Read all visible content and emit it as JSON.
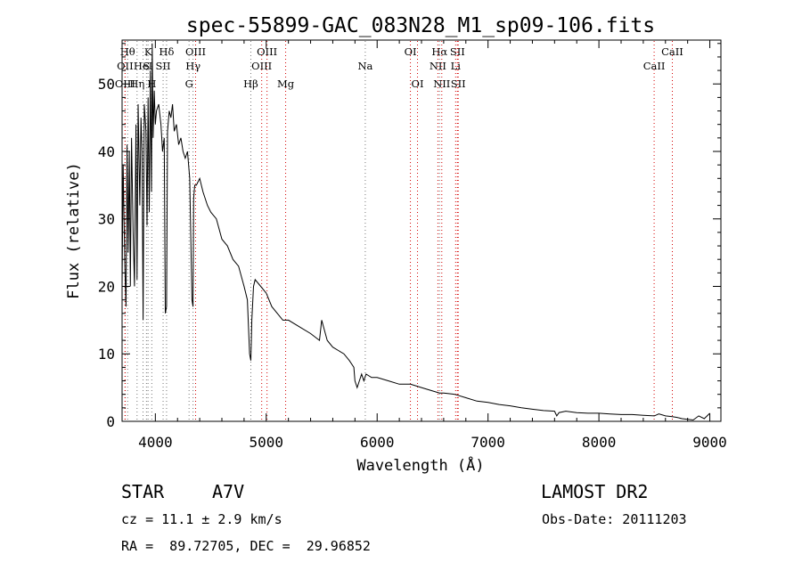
{
  "chart_data": {
    "type": "line",
    "title": "spec-55899-GAC_083N28_M1_sp09-106.fits",
    "xlabel": "Wavelength (Å)",
    "ylabel": "Flux (relative)",
    "xlim": [
      3700,
      9100
    ],
    "ylim": [
      0,
      56.5
    ],
    "x_ticks": [
      4000,
      5000,
      6000,
      7000,
      8000,
      9000
    ],
    "y_ticks": [
      0,
      10,
      20,
      30,
      40,
      50
    ],
    "series": [
      {
        "name": "spectrum",
        "x": [
          3700,
          3710,
          3725,
          3735,
          3745,
          3755,
          3765,
          3775,
          3785,
          3800,
          3812,
          3825,
          3835,
          3845,
          3860,
          3870,
          3880,
          3890,
          3900,
          3915,
          3925,
          3935,
          3945,
          3955,
          3965,
          3972,
          3980,
          3990,
          4000,
          4010,
          4030,
          4050,
          4065,
          4080,
          4090,
          4101,
          4110,
          4125,
          4140,
          4155,
          4170,
          4190,
          4210,
          4230,
          4250,
          4270,
          4290,
          4310,
          4330,
          4340,
          4345,
          4355,
          4370,
          4400,
          4430,
          4470,
          4500,
          4550,
          4600,
          4650,
          4700,
          4750,
          4800,
          4830,
          4850,
          4861,
          4870,
          4885,
          4900,
          4950,
          5000,
          5050,
          5100,
          5150,
          5200,
          5300,
          5400,
          5480,
          5500,
          5550,
          5600,
          5650,
          5700,
          5750,
          5790,
          5800,
          5820,
          5840,
          5860,
          5880,
          5900,
          5950,
          6000,
          6100,
          6200,
          6300,
          6400,
          6500,
          6563,
          6600,
          6700,
          6800,
          6900,
          7000,
          7100,
          7200,
          7300,
          7400,
          7500,
          7600,
          7620,
          7640,
          7700,
          7800,
          7900,
          8000,
          8100,
          8200,
          8300,
          8400,
          8500,
          8540,
          8600,
          8662,
          8700,
          8750,
          8800,
          8850,
          8900,
          8950,
          9000
        ],
        "y": [
          20,
          38,
          23,
          17,
          41,
          25,
          40,
          20,
          42,
          28,
          20,
          44,
          21,
          47,
          32,
          45,
          40,
          15,
          47,
          43,
          29,
          48,
          31,
          52,
          34,
          56,
          42,
          49,
          44,
          46,
          47,
          44,
          40,
          42,
          16,
          17,
          43,
          46,
          45,
          47,
          43,
          44,
          41,
          42,
          40,
          39,
          40,
          36,
          18,
          17,
          33,
          35,
          35,
          36,
          34,
          32,
          31,
          30,
          27,
          26,
          24,
          23,
          20,
          18,
          10,
          9,
          15,
          20,
          21,
          20,
          19,
          17,
          16,
          15,
          15,
          14,
          13,
          12,
          15,
          12,
          11,
          10.5,
          10,
          9,
          8,
          6,
          5,
          6,
          7,
          6,
          7,
          6.5,
          6.5,
          6,
          5.5,
          5.5,
          5,
          4.5,
          4.2,
          4.2,
          4,
          3.5,
          3,
          2.8,
          2.5,
          2.3,
          2,
          1.8,
          1.6,
          1.5,
          0.8,
          1.3,
          1.5,
          1.3,
          1.2,
          1.2,
          1.1,
          1,
          1,
          0.9,
          0.8,
          1.1,
          0.8,
          0.7,
          0.6,
          0.4,
          0.3,
          0.2,
          0.8,
          0.4,
          1.2
        ]
      }
    ],
    "lines": [
      {
        "label": "OII",
        "x": 3727,
        "color": "#d40000",
        "row": 2
      },
      {
        "label": "OIII",
        "x": 3727,
        "color": "#d40000",
        "row": 3
      },
      {
        "label": "Hθ",
        "x": 3750,
        "color": "#777777",
        "row": 1
      },
      {
        "label": "Hη",
        "x": 3835,
        "color": "#777777",
        "row": 3
      },
      {
        "label": "HeI",
        "x": 3889,
        "color": "#777777",
        "row": 2
      },
      {
        "label": "K",
        "x": 3934,
        "color": "#777777",
        "row": 1
      },
      {
        "label": "S",
        "x": 3920,
        "color": "#777777",
        "row": 2
      },
      {
        "label": "H",
        "x": 3968,
        "color": "#777777",
        "row": 3
      },
      {
        "label": "Hδ",
        "x": 4101,
        "color": "#777777",
        "row": 1
      },
      {
        "label": "SII",
        "x": 4070,
        "color": "#777777",
        "row": 2
      },
      {
        "label": "OIII",
        "x": 4363,
        "color": "#d40000",
        "row": 1
      },
      {
        "label": "Hγ",
        "x": 4340,
        "color": "#777777",
        "row": 2
      },
      {
        "label": "G",
        "x": 4304,
        "color": "#777777",
        "row": 3
      },
      {
        "label": "Hβ",
        "x": 4861,
        "color": "#777777",
        "row": 3
      },
      {
        "label": "OIII",
        "x": 5007,
        "color": "#d40000",
        "row": 1
      },
      {
        "label": "OIII",
        "x": 4959,
        "color": "#d40000",
        "row": 2
      },
      {
        "label": "Mg",
        "x": 5175,
        "color": "#d40000",
        "row": 3
      },
      {
        "label": "Na",
        "x": 5893,
        "color": "#777777",
        "row": 2
      },
      {
        "label": "OI",
        "x": 6300,
        "color": "#d40000",
        "row": 1
      },
      {
        "label": "OI",
        "x": 6364,
        "color": "#d40000",
        "row": 3
      },
      {
        "label": "Hα",
        "x": 6563,
        "color": "#777777",
        "row": 1
      },
      {
        "label": "NII",
        "x": 6548,
        "color": "#d40000",
        "row": 2
      },
      {
        "label": "NII",
        "x": 6583,
        "color": "#d40000",
        "row": 3
      },
      {
        "label": "SII",
        "x": 6724,
        "color": "#d40000",
        "row": 1
      },
      {
        "label": "Li",
        "x": 6708,
        "color": "#d40000",
        "row": 2
      },
      {
        "label": "SII",
        "x": 6731,
        "color": "#d40000",
        "row": 3
      },
      {
        "label": "CaII",
        "x": 8662,
        "color": "#d40000",
        "row": 1
      },
      {
        "label": "CaII",
        "x": 8498,
        "color": "#d40000",
        "row": 2
      }
    ]
  },
  "info": {
    "object_type": "STAR",
    "subclass": "A7V",
    "survey": "LAMOST DR2",
    "redshift": "cz = 11.1 ± 2.9 km/s",
    "obs_date": "Obs-Date: 20111203",
    "coords": "RA =  89.72705, DEC =  29.96852"
  }
}
